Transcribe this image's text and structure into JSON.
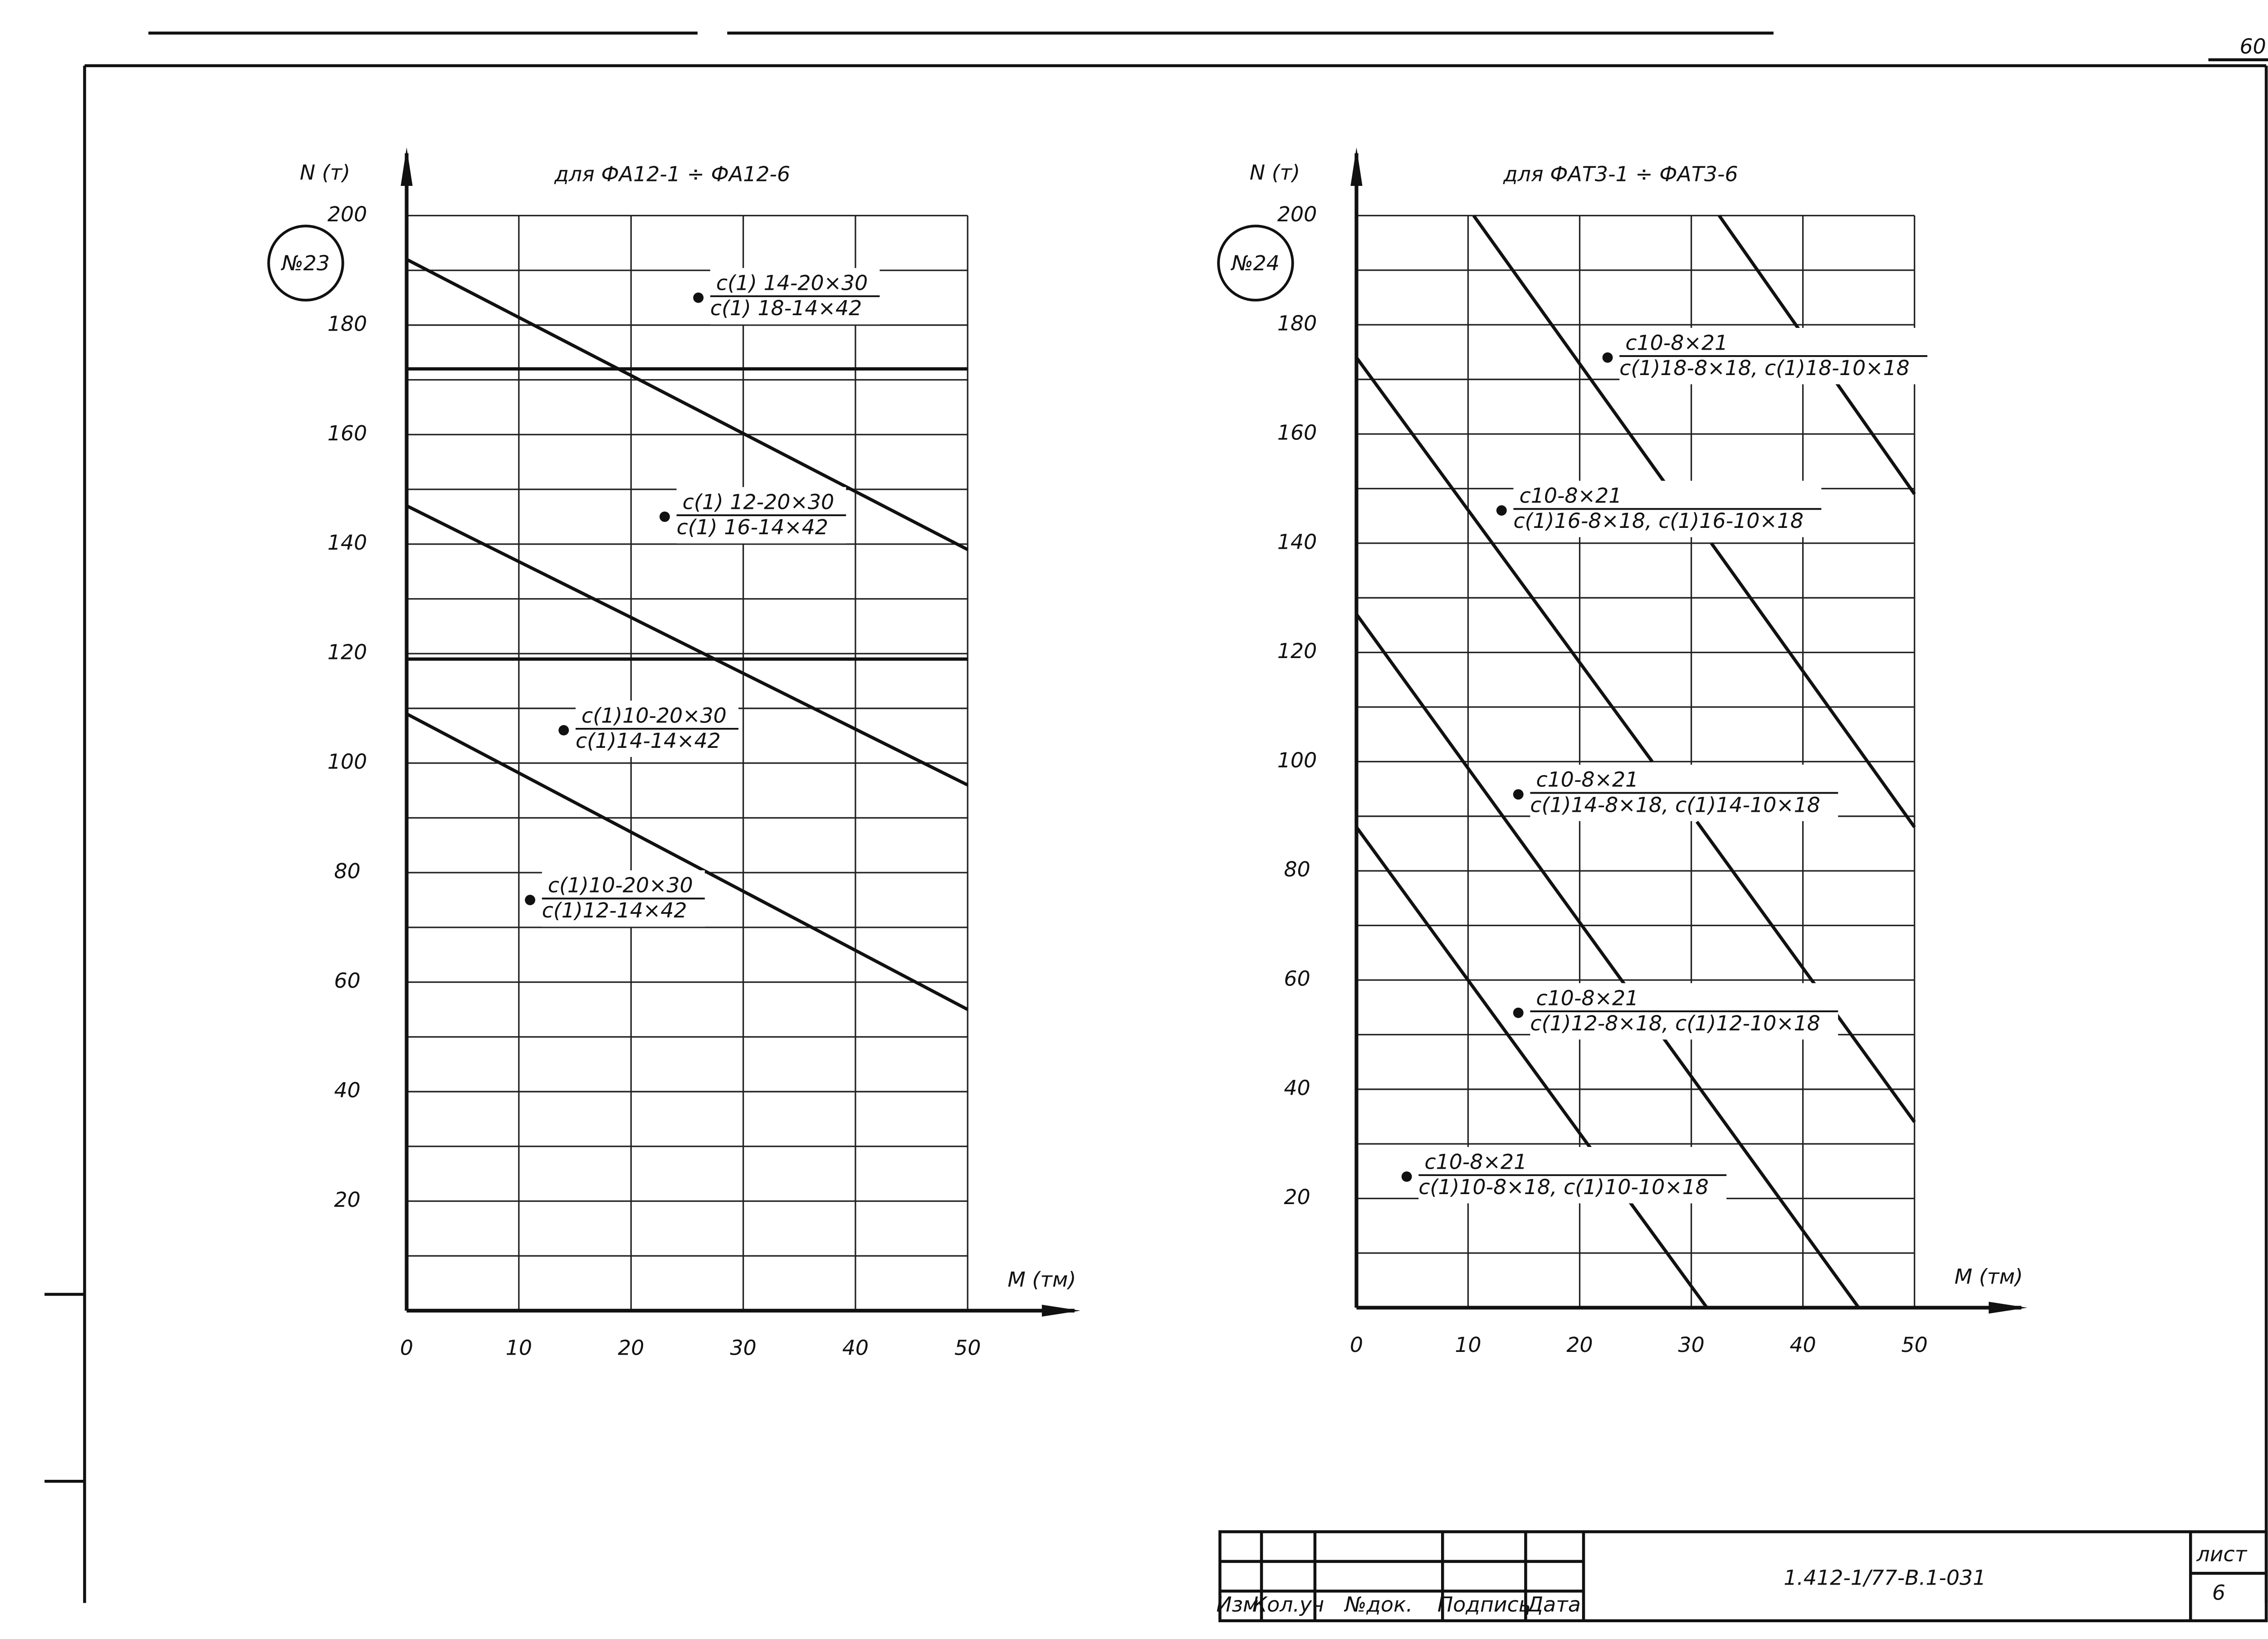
{
  "sheet_number": "60",
  "stamp": {
    "code": "1.412-1/77-В.1-031",
    "sheet_label": "лист",
    "sheet": "6",
    "columns": [
      "Изм.",
      "Кол.уч",
      "№док.",
      "Подпись",
      "Дата"
    ]
  },
  "chart_data": [
    {
      "type": "line",
      "badge": "№23",
      "title": "для ФА12-1 ÷ ФА12-6",
      "x_label": "М (тм)",
      "y_label": "N (т)",
      "xlim": [
        0,
        50
      ],
      "ylim": [
        0,
        200
      ],
      "xticks": [
        0,
        10,
        20,
        30,
        40,
        50
      ],
      "yticks": [
        20,
        40,
        60,
        80,
        100,
        120,
        140,
        160,
        180,
        200
      ],
      "grid": true,
      "color": "#111111",
      "series": [
        {
          "x": [
            0,
            50
          ],
          "values": [
            192,
            139
          ]
        },
        {
          "x": [
            0,
            50
          ],
          "values": [
            172,
            172
          ]
        },
        {
          "x": [
            0,
            50
          ],
          "values": [
            147,
            96
          ]
        },
        {
          "x": [
            0,
            50
          ],
          "values": [
            119,
            119
          ]
        },
        {
          "x": [
            0,
            50
          ],
          "values": [
            109,
            55
          ]
        }
      ],
      "annotations": [
        {
          "x": 26,
          "y": 185,
          "numerator": "с(1) 14-20×30",
          "denominator": "с(1) 18-14×42"
        },
        {
          "x": 23,
          "y": 145,
          "numerator": "с(1) 12-20×30",
          "denominator": "с(1) 16-14×42"
        },
        {
          "x": 14,
          "y": 106,
          "numerator": "с(1)10-20×30",
          "denominator": "с(1)14-14×42"
        },
        {
          "x": 11,
          "y": 75,
          "numerator": "с(1)10-20×30",
          "denominator": "с(1)12-14×42"
        }
      ]
    },
    {
      "type": "line",
      "badge": "№24",
      "title": "для ФАТ3-1 ÷ ФАТ3-6",
      "x_label": "М (тм)",
      "y_label": "N (т)",
      "xlim": [
        0,
        50
      ],
      "ylim": [
        0,
        200
      ],
      "xticks": [
        0,
        10,
        20,
        30,
        40,
        50
      ],
      "yticks": [
        20,
        40,
        60,
        80,
        100,
        120,
        140,
        160,
        180,
        200
      ],
      "grid": true,
      "color": "#111111",
      "series": [
        {
          "x": [
            10.5,
            28
          ],
          "values": [
            200,
            150
          ]
        },
        {
          "x": [
            32.5,
            50
          ],
          "values": [
            200,
            149
          ]
        },
        {
          "x": [
            0,
            26.5
          ],
          "values": [
            174,
            100
          ]
        },
        {
          "x": [
            31.8,
            50
          ],
          "values": [
            140,
            88
          ]
        },
        {
          "x": [
            0,
            45
          ],
          "values": [
            127,
            0
          ]
        },
        {
          "x": [
            30.5,
            50
          ],
          "values": [
            89,
            34
          ]
        },
        {
          "x": [
            0,
            31.4
          ],
          "values": [
            88,
            0
          ]
        }
      ],
      "annotations": [
        {
          "x": 22.5,
          "y": 174,
          "numerator": "с10-8×21",
          "denominator": "с(1)18-8×18, с(1)18-10×18"
        },
        {
          "x": 13,
          "y": 146,
          "numerator": "с10-8×21",
          "denominator": "с(1)16-8×18, с(1)16-10×18"
        },
        {
          "x": 14.5,
          "y": 94,
          "numerator": "с10-8×21",
          "denominator": "с(1)14-8×18, с(1)14-10×18"
        },
        {
          "x": 14.5,
          "y": 54,
          "numerator": "с10-8×21",
          "denominator": "с(1)12-8×18, с(1)12-10×18"
        },
        {
          "x": 4.5,
          "y": 24,
          "numerator": "с10-8×21",
          "denominator": "с(1)10-8×18, с(1)10-10×18"
        }
      ]
    }
  ]
}
